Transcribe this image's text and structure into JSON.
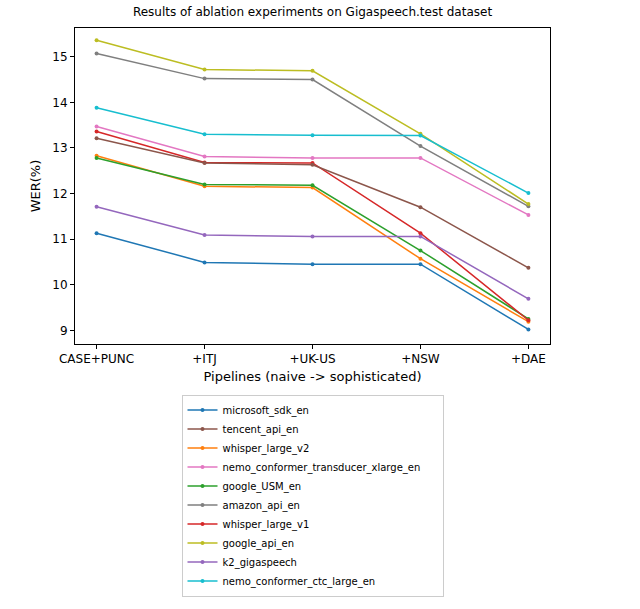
{
  "chart_data": {
    "type": "line",
    "title": "Results of ablation experiments on Gigaspeech.test dataset",
    "x_label": "Pipelines (naive -> sophisticated)",
    "y_label": "WER(%)",
    "categories": [
      "CASE+PUNC",
      "+ITJ",
      "+UK-US",
      "+NSW",
      "+DAE"
    ],
    "ylim": [
      8.7,
      15.63
    ],
    "yticks": [
      9,
      10,
      11,
      12,
      13,
      14,
      15
    ],
    "grid": false,
    "legend": "bottom",
    "marker": "circle",
    "series": [
      {
        "name": "microsoft_sdk_en",
        "color": "#1f77b4",
        "values": [
          11.13,
          10.49,
          10.45,
          10.45,
          9.02
        ]
      },
      {
        "name": "whisper_large_v2",
        "color": "#ff7f0e",
        "values": [
          12.83,
          12.16,
          12.13,
          10.57,
          9.19
        ]
      },
      {
        "name": "google_USM_en",
        "color": "#2ca02c",
        "values": [
          12.78,
          12.2,
          12.18,
          10.75,
          9.25
        ]
      },
      {
        "name": "whisper_large_v1",
        "color": "#d62728",
        "values": [
          13.36,
          12.68,
          12.67,
          11.13,
          9.22
        ]
      },
      {
        "name": "k2_gigaspeech",
        "color": "#9467bd",
        "values": [
          11.71,
          11.09,
          11.06,
          11.06,
          9.69
        ]
      },
      {
        "name": "tencent_api_en",
        "color": "#8c564b",
        "values": [
          13.21,
          12.67,
          12.63,
          11.7,
          10.37
        ]
      },
      {
        "name": "nemo_conformer_transducer_xlarge_en",
        "color": "#e377c2",
        "values": [
          13.47,
          12.81,
          12.78,
          12.78,
          11.53
        ]
      },
      {
        "name": "amazon_api_en",
        "color": "#7f7f7f",
        "values": [
          15.07,
          14.52,
          14.5,
          13.04,
          11.72
        ]
      },
      {
        "name": "google_api_en",
        "color": "#bcbd22",
        "values": [
          15.36,
          14.72,
          14.69,
          13.31,
          11.77
        ]
      },
      {
        "name": "nemo_conformer_ctc_large_en",
        "color": "#17becf",
        "values": [
          13.88,
          13.3,
          13.28,
          13.27,
          12.01
        ]
      }
    ]
  }
}
